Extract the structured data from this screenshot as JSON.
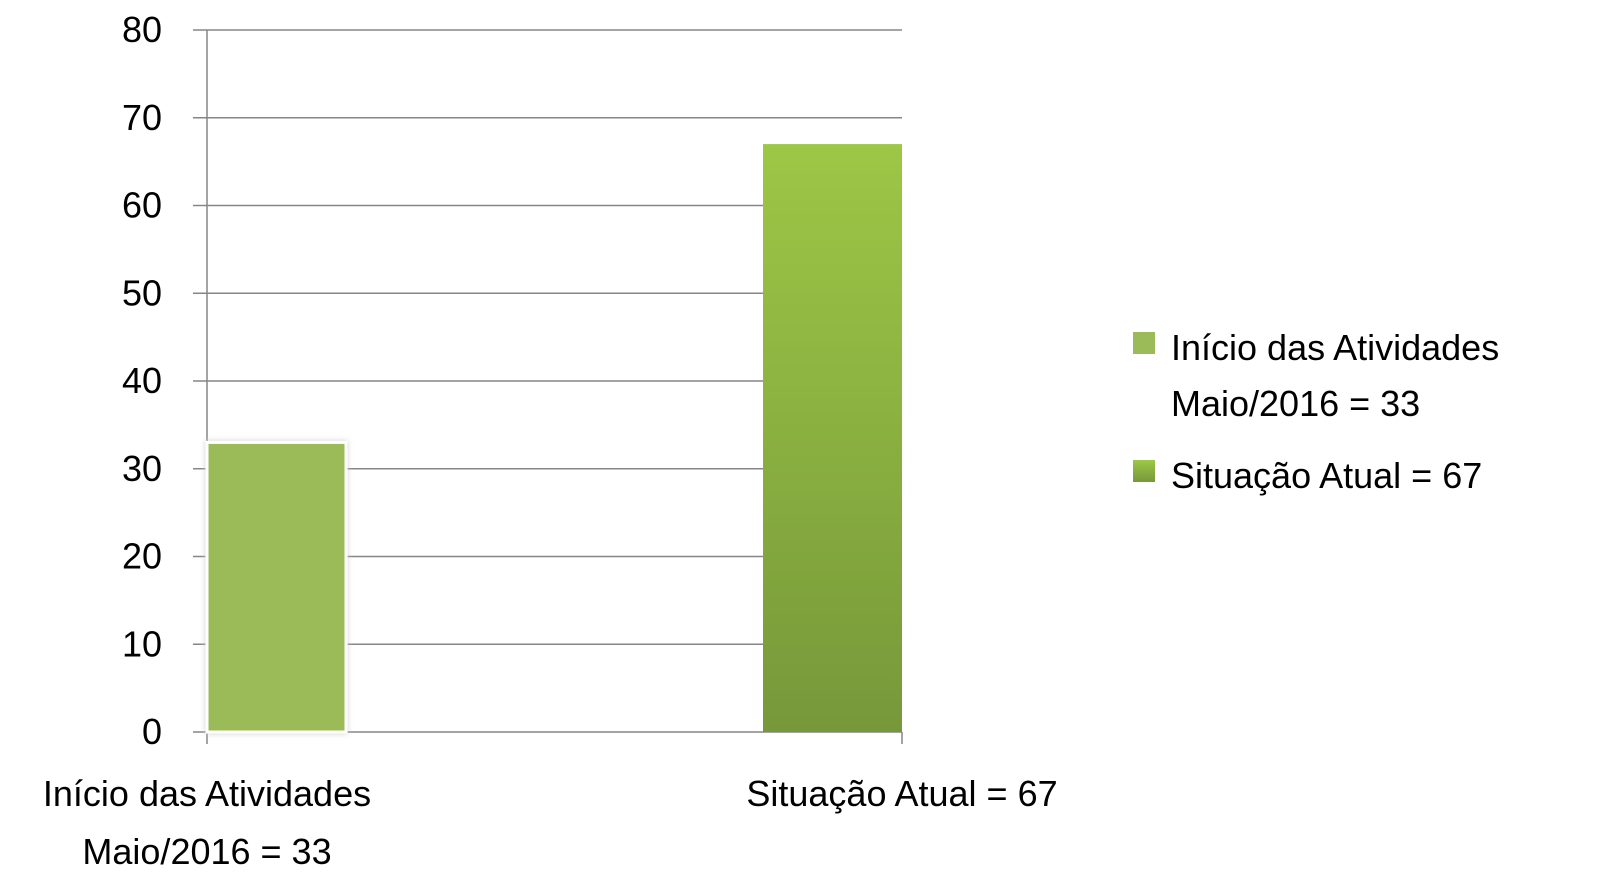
{
  "chart_data": {
    "type": "bar",
    "categories": [
      [
        "Início das Atividades",
        "Maio/2016 = 33"
      ],
      [
        "Situação Atual = 67"
      ]
    ],
    "series": [
      {
        "name": "Início das Atividades Maio/2016 = 33",
        "legend_lines": [
          "Início das Atividades",
          "Maio/2016 = 33"
        ],
        "category_index": 0,
        "value": 33,
        "color": "#9bbb59"
      },
      {
        "name": "Situação Atual = 67",
        "legend_lines": [
          "Situação Atual = 67"
        ],
        "category_index": 1,
        "value": 67,
        "color_top": "#9dc746",
        "color_bottom": "#77983a"
      }
    ],
    "ylim": [
      0,
      80
    ],
    "yticks": [
      "0",
      "10",
      "20",
      "30",
      "40",
      "50",
      "60",
      "70",
      "80"
    ],
    "grid": true,
    "legend_position": "right"
  }
}
